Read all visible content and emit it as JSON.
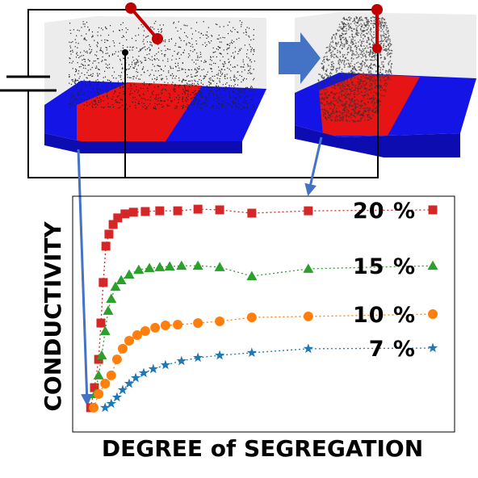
{
  "chart_data": {
    "type": "line",
    "xlabel": "DEGREE of SEGREGATION",
    "ylabel": "CONDUCTIVITY",
    "xlim": [
      0,
      100
    ],
    "ylim": [
      0,
      100
    ],
    "series": [
      {
        "name": "20 %",
        "color": "#d62728",
        "marker": "square",
        "x": [
          4.7,
          5.7,
          6.8,
          7.4,
          8.0,
          8.7,
          9.5,
          10.6,
          11.8,
          13.7,
          15.9,
          19.0,
          22.8,
          27.5,
          32.8,
          38.5,
          46.9,
          61.7,
          94.3
        ],
        "values": [
          10.3,
          18.8,
          30.8,
          46.2,
          63.4,
          78.8,
          83.9,
          88.0,
          90.8,
          92.5,
          93.2,
          93.5,
          93.8,
          93.8,
          94.5,
          94.2,
          92.8,
          93.8,
          94.2
        ]
      },
      {
        "name": "15 %",
        "color": "#2ca02c",
        "marker": "triangle",
        "x": [
          5.9,
          6.8,
          7.6,
          8.5,
          9.3,
          10.1,
          11.2,
          12.7,
          14.8,
          17.3,
          20.1,
          22.8,
          25.4,
          28.5,
          32.8,
          38.5,
          46.9,
          61.7,
          94.3
        ],
        "values": [
          16.1,
          24.0,
          32.5,
          42.8,
          51.4,
          56.5,
          61.6,
          64.4,
          66.8,
          68.8,
          69.5,
          69.9,
          70.2,
          70.5,
          70.5,
          69.9,
          66.1,
          69.2,
          70.5
        ]
      },
      {
        "name": "10 %",
        "color": "#ff7f0e",
        "marker": "circle",
        "x": [
          5.5,
          6.8,
          8.5,
          10.1,
          11.6,
          13.1,
          14.8,
          16.9,
          19.0,
          21.6,
          24.3,
          27.5,
          32.8,
          38.5,
          46.9,
          61.7,
          94.3
        ],
        "values": [
          10.3,
          16.1,
          20.5,
          24.0,
          30.8,
          35.3,
          38.7,
          41.1,
          42.8,
          44.2,
          45.2,
          45.5,
          46.2,
          46.9,
          48.6,
          49.0,
          50.0
        ]
      },
      {
        "name": "7 %",
        "color": "#1f77b4",
        "marker": "star",
        "x": [
          8.5,
          10.1,
          11.6,
          13.1,
          14.8,
          16.5,
          18.6,
          21.1,
          24.3,
          28.5,
          32.8,
          38.5,
          46.9,
          61.7,
          94.3
        ],
        "values": [
          10.3,
          12.0,
          14.7,
          17.8,
          20.5,
          22.9,
          25.0,
          26.7,
          28.4,
          30.1,
          31.5,
          32.5,
          33.6,
          35.3,
          35.6
        ]
      }
    ]
  }
}
